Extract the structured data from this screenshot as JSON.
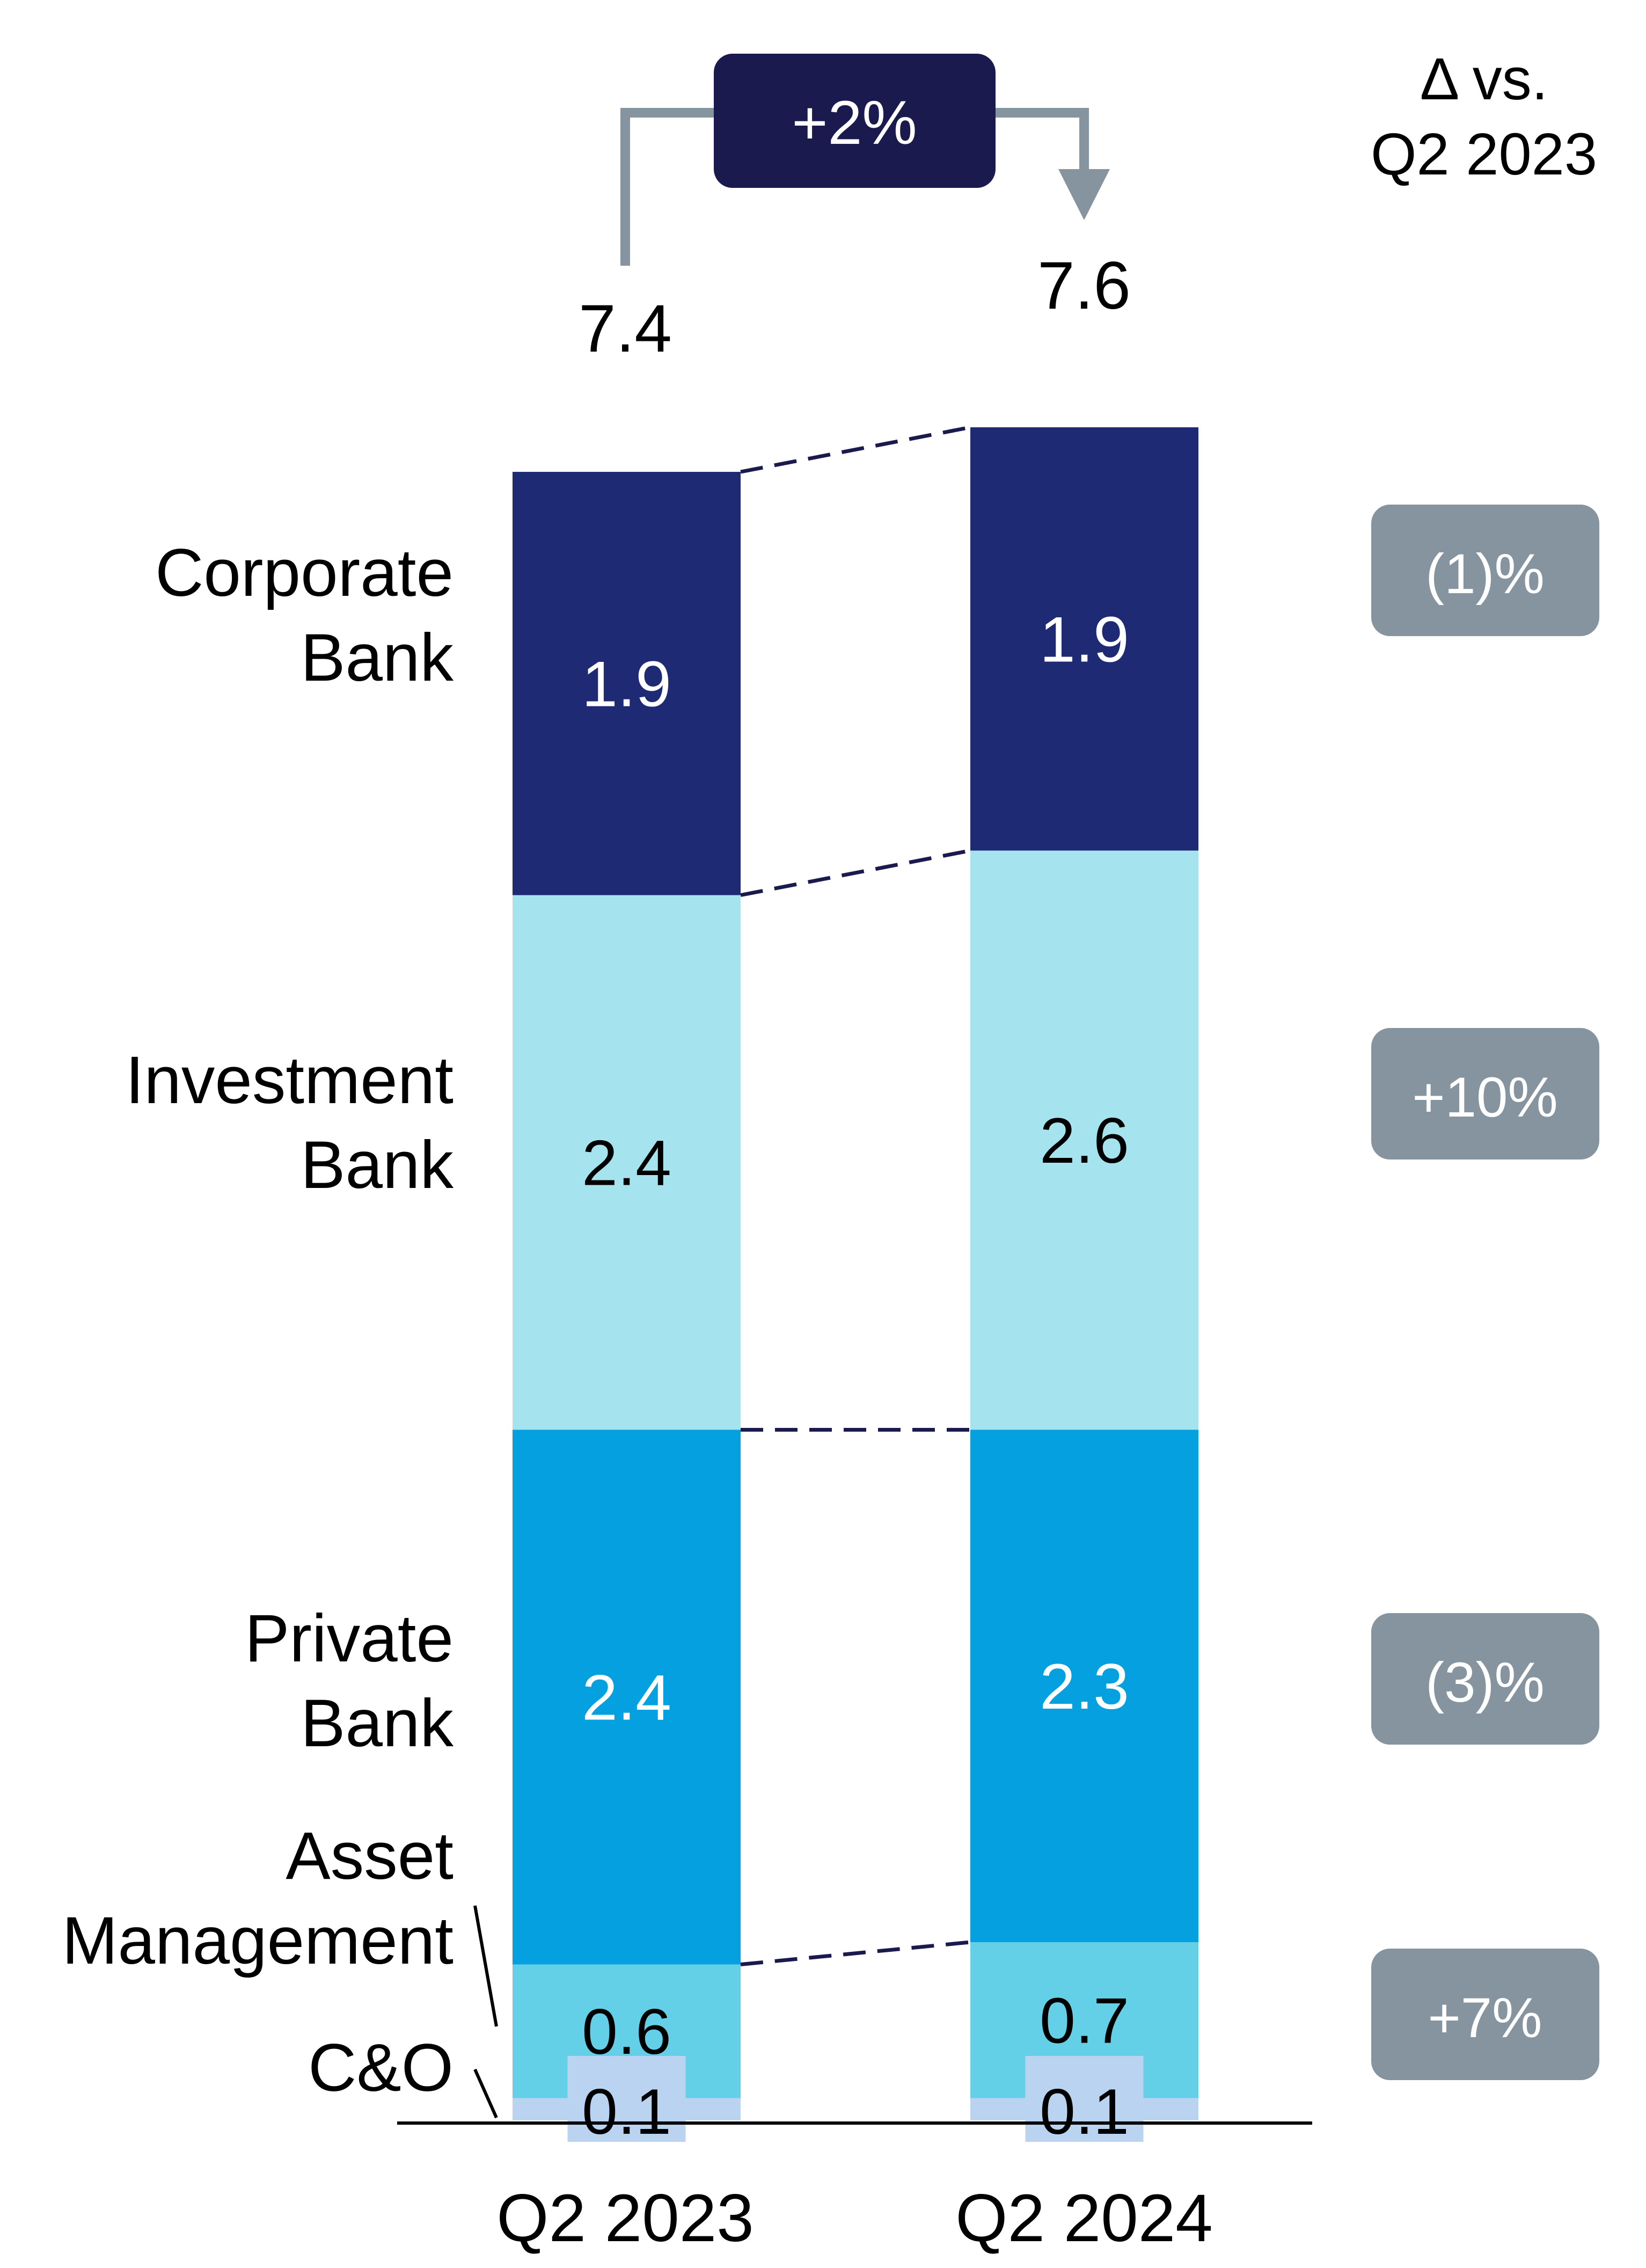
{
  "chart_data": {
    "type": "bar",
    "stacked": true,
    "categories": [
      "Q2 2023",
      "Q2 2024"
    ],
    "totals": [
      "7.4",
      "7.6"
    ],
    "series": [
      {
        "name": "C&O",
        "values": [
          0.1,
          0.1
        ],
        "labels": [
          "0.1",
          "0.1"
        ],
        "color": "#b9d3f0",
        "text_color": "#000000"
      },
      {
        "name": "Asset Management",
        "values": [
          0.6,
          0.7
        ],
        "labels": [
          "0.6",
          "0.7"
        ],
        "color": "#63d0e8",
        "text_color": "#000000"
      },
      {
        "name": "Private Bank",
        "values": [
          2.4,
          2.3
        ],
        "labels": [
          "2.4",
          "2.3"
        ],
        "color": "#04a0e0",
        "text_color": "#ffffff"
      },
      {
        "name": "Investment Bank",
        "values": [
          2.4,
          2.6
        ],
        "labels": [
          "2.4",
          "2.6"
        ],
        "color": "#a5e3ef",
        "text_color": "#000000"
      },
      {
        "name": "Corporate Bank",
        "values": [
          1.9,
          1.9
        ],
        "labels": [
          "1.9",
          "1.9"
        ],
        "color": "#1f2a74",
        "text_color": "#ffffff"
      }
    ],
    "segment_labels": {
      "corporate_bank": [
        "Corporate",
        "Bank"
      ],
      "investment_bank": [
        "Investment",
        "Bank"
      ],
      "private_bank": [
        "Private",
        "Bank"
      ],
      "asset_management": [
        "Asset",
        "Management"
      ],
      "c_and_o": "C&O"
    },
    "delta_header": [
      "Δ vs.",
      "Q2 2023"
    ],
    "deltas": {
      "corporate_bank": "(1)%",
      "investment_bank": "+10%",
      "private_bank": "(3)%",
      "asset_management": "+7%"
    },
    "total_change": "+2%",
    "colors": {
      "total_badge": "#1a1a4e",
      "delta_badge": "#8694a0",
      "arrow": "#8694a0",
      "connector": "#1a1a4e",
      "axis": "#000000"
    },
    "ylim": [
      0,
      7.6
    ]
  }
}
